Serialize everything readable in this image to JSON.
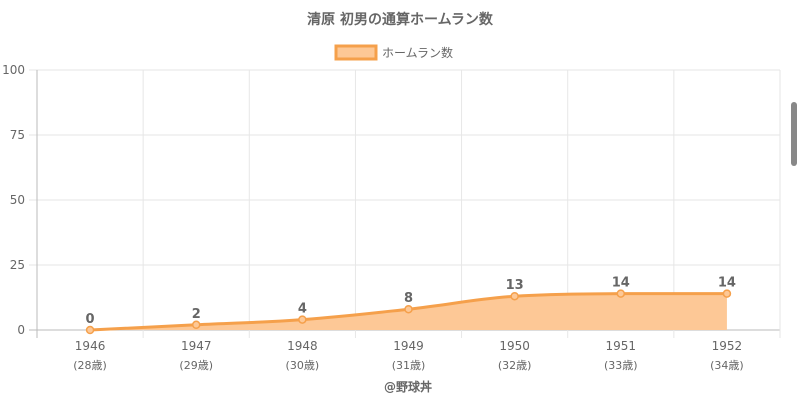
{
  "chart_data": {
    "type": "area",
    "title": "清原 初男の通算ホームラン数",
    "legend": {
      "label": "ホームラン数",
      "position": "top"
    },
    "categories": [
      "1946",
      "1947",
      "1948",
      "1949",
      "1950",
      "1951",
      "1952"
    ],
    "age_labels": [
      "(28歳)",
      "(29歳)",
      "(30歳)",
      "(31歳)",
      "(32歳)",
      "(33歳)",
      "(34歳)"
    ],
    "series": [
      {
        "name": "ホームラン数",
        "values": [
          0,
          2,
          4,
          8,
          13,
          14,
          14
        ]
      }
    ],
    "ylim": [
      0,
      100
    ],
    "yticks": [
      0,
      25,
      50,
      75,
      100
    ],
    "grid": true,
    "credit": "@野球丼",
    "colors": {
      "line": "#f5a04b",
      "fill": "#fdc896",
      "point": "#f5a04b"
    }
  }
}
